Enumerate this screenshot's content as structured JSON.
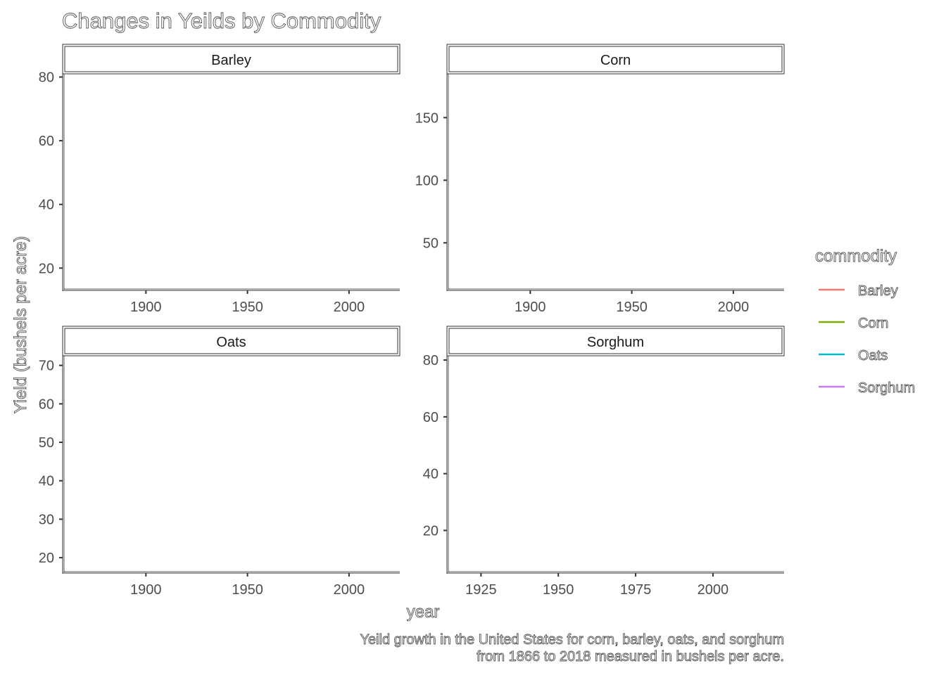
{
  "chart_data": {
    "type": "line",
    "title": "Changes in Yeilds by Commodity",
    "xlabel": "year",
    "ylabel": "Yield (bushels per acre)",
    "caption_lines": [
      "Yeild growth in the United States for corn, barley, oats, and sorghum",
      "from 1866 to 2018 measured in bushels per acre."
    ],
    "legend": {
      "title": "commodity",
      "placement": "right",
      "entries": [
        {
          "name": "Barley",
          "color": "#F8766D"
        },
        {
          "name": "Corn",
          "color": "#7CAE00"
        },
        {
          "name": "Oats",
          "color": "#00BFC4"
        },
        {
          "name": "Sorghum",
          "color": "#C77CFF"
        }
      ]
    },
    "facets": [
      {
        "label": "Barley",
        "xlim": [
          1859,
          2025
        ],
        "ylim": [
          13,
          81
        ],
        "xticks": [
          1900,
          1950,
          2000
        ],
        "yticks": [
          20,
          40,
          60,
          80
        ],
        "series": []
      },
      {
        "label": "Corn",
        "xlim": [
          1859,
          2025
        ],
        "ylim": [
          12,
          185
        ],
        "xticks": [
          1900,
          1950,
          2000
        ],
        "yticks": [
          50,
          100,
          150
        ],
        "series": []
      },
      {
        "label": "Oats",
        "xlim": [
          1859,
          2025
        ],
        "ylim": [
          16,
          72.5
        ],
        "xticks": [
          1900,
          1950,
          2000
        ],
        "yticks": [
          20,
          30,
          40,
          50,
          60,
          70
        ],
        "series": []
      },
      {
        "label": "Sorghum",
        "xlim": [
          1914,
          2023
        ],
        "ylim": [
          5,
          81.5
        ],
        "xticks": [
          1925,
          1950,
          1975,
          2000
        ],
        "yticks": [
          20,
          40,
          60,
          80
        ],
        "series": []
      }
    ],
    "grid": false
  }
}
